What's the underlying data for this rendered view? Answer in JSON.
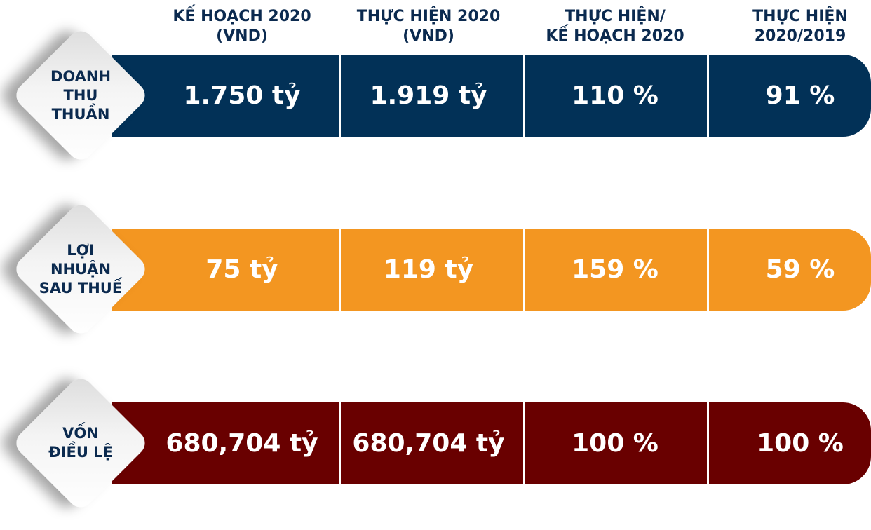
{
  "header": {
    "columns": [
      [
        "KẾ HOẠCH 2020",
        "(VND)"
      ],
      [
        "THỰC HIỆN 2020",
        "(VND)"
      ],
      [
        "THỰC HIỆN/",
        "KẾ HOẠCH 2020"
      ],
      [
        "THỰC HIỆN",
        "2020/2019"
      ]
    ]
  },
  "rows": [
    {
      "label": [
        "DOANH",
        "THU",
        "THUẦN"
      ],
      "color": "#023157",
      "cells": [
        "1.750 tỷ",
        "1.919 tỷ",
        "110 %",
        "91 %"
      ]
    },
    {
      "label": [
        "LỢI",
        "NHUẬN",
        "SAU THUẾ"
      ],
      "color": "#f39621",
      "cells": [
        "75 tỷ",
        "119 tỷ",
        "159 %",
        "59 %"
      ]
    },
    {
      "label": [
        "VỐN",
        "ĐIỀU LỆ"
      ],
      "color": "#690000",
      "cells": [
        "680,704 tỷ",
        "680,704 tỷ",
        "100 %",
        "100 %"
      ]
    }
  ]
}
